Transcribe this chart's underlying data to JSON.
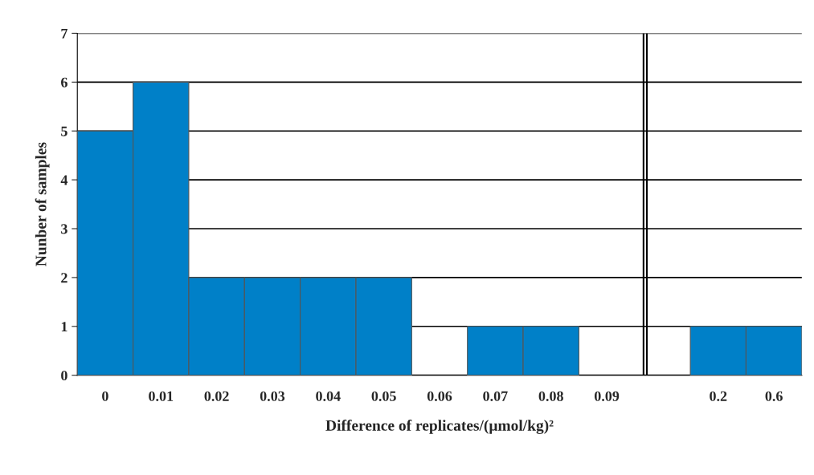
{
  "chart_data": {
    "type": "bar",
    "categories": [
      "0",
      "0.01",
      "0.02",
      "0.03",
      "0.04",
      "0.05",
      "0.06",
      "0.07",
      "0.08",
      "0.09",
      null,
      "0.2",
      "0.6"
    ],
    "values": [
      5,
      6,
      2,
      2,
      2,
      2,
      0,
      1,
      1,
      0,
      null,
      1,
      1
    ],
    "color": "#0080c8",
    "xlabel": "Difference of replicates/(μmol/kg)²",
    "ylabel": "Nunber of samples",
    "ylim": [
      0,
      7
    ],
    "yticks": [
      0,
      1,
      2,
      3,
      4,
      5,
      6,
      7
    ],
    "grid": "y",
    "legend": false
  }
}
